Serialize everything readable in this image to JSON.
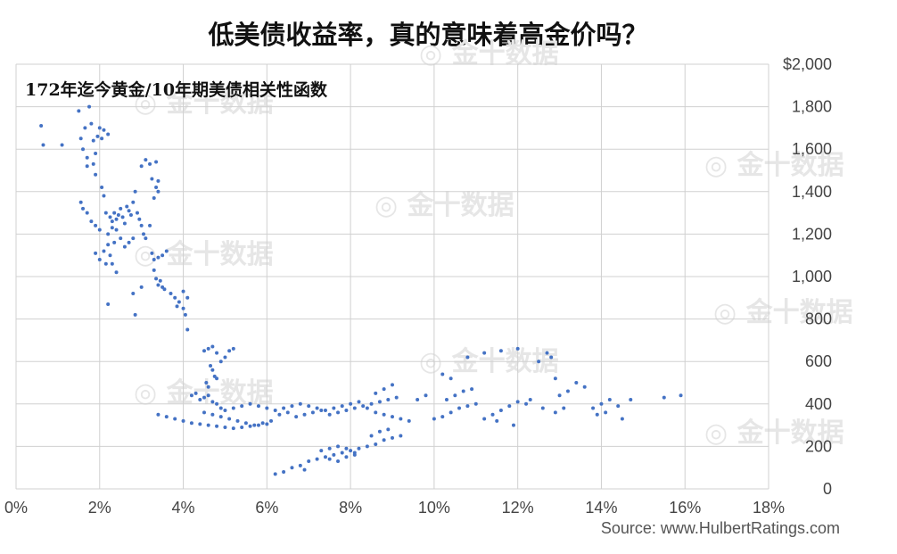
{
  "chart_data": {
    "type": "scatter",
    "title": "低美债收益率，真的意味着高金价吗？",
    "subtitle": "172年迄今黄金/10年期美债相关性函数",
    "source": "Source: www.HulbertRatings.com",
    "xlim": [
      0,
      18
    ],
    "ylim": [
      0,
      2000
    ],
    "x_ticks": [
      "0%",
      "2%",
      "4%",
      "6%",
      "8%",
      "10%",
      "12%",
      "14%",
      "16%",
      "18%"
    ],
    "y_ticks": [
      "$2,000",
      "1,800",
      "1,600",
      "1,400",
      "1,200",
      "1,000",
      "800",
      "600",
      "400",
      "200",
      "0"
    ],
    "grid": true,
    "point_color": "#4472c4",
    "series": [
      {
        "values": [
          [
            0.6,
            1710
          ],
          [
            0.65,
            1620
          ],
          [
            1.1,
            1620
          ],
          [
            1.5,
            1780
          ],
          [
            1.55,
            1650
          ],
          [
            1.6,
            1600
          ],
          [
            1.65,
            1700
          ],
          [
            1.7,
            1560
          ],
          [
            1.75,
            1800
          ],
          [
            1.8,
            1720
          ],
          [
            1.85,
            1640
          ],
          [
            1.9,
            1580
          ],
          [
            1.95,
            1660
          ],
          [
            2.0,
            1700
          ],
          [
            1.7,
            1520
          ],
          [
            1.85,
            1530
          ],
          [
            2.05,
            1650
          ],
          [
            2.1,
            1690
          ],
          [
            2.2,
            1670
          ],
          [
            1.9,
            1480
          ],
          [
            1.55,
            1350
          ],
          [
            1.6,
            1320
          ],
          [
            1.7,
            1300
          ],
          [
            1.8,
            1260
          ],
          [
            1.9,
            1240
          ],
          [
            2.0,
            1220
          ],
          [
            2.05,
            1420
          ],
          [
            2.1,
            1380
          ],
          [
            2.15,
            1300
          ],
          [
            2.2,
            1200
          ],
          [
            2.25,
            1280
          ],
          [
            2.3,
            1260
          ],
          [
            2.35,
            1300
          ],
          [
            2.4,
            1270
          ],
          [
            2.45,
            1290
          ],
          [
            2.5,
            1320
          ],
          [
            2.55,
            1280
          ],
          [
            2.6,
            1250
          ],
          [
            2.65,
            1330
          ],
          [
            2.7,
            1310
          ],
          [
            2.75,
            1290
          ],
          [
            2.8,
            1350
          ],
          [
            2.85,
            1400
          ],
          [
            2.9,
            1300
          ],
          [
            2.95,
            1270
          ],
          [
            3.0,
            1240
          ],
          [
            3.05,
            1200
          ],
          [
            3.1,
            1180
          ],
          [
            2.3,
            1230
          ],
          [
            2.4,
            1220
          ],
          [
            2.5,
            1180
          ],
          [
            2.35,
            1160
          ],
          [
            2.2,
            1150
          ],
          [
            2.1,
            1120
          ],
          [
            2.25,
            1100
          ],
          [
            2.3,
            1060
          ],
          [
            1.9,
            1110
          ],
          [
            2.0,
            1080
          ],
          [
            2.15,
            1060
          ],
          [
            2.4,
            1020
          ],
          [
            2.6,
            1140
          ],
          [
            2.7,
            1160
          ],
          [
            2.8,
            1180
          ],
          [
            2.2,
            870
          ],
          [
            2.8,
            920
          ],
          [
            2.85,
            820
          ],
          [
            3.0,
            950
          ],
          [
            3.25,
            1110
          ],
          [
            3.3,
            1080
          ],
          [
            3.4,
            1090
          ],
          [
            3.5,
            1100
          ],
          [
            3.6,
            1120
          ],
          [
            3.2,
            1240
          ],
          [
            3.3,
            1370
          ],
          [
            3.4,
            1400
          ],
          [
            3.2,
            1530
          ],
          [
            3.35,
            1540
          ],
          [
            3.1,
            1550
          ],
          [
            3.0,
            1520
          ],
          [
            3.25,
            1460
          ],
          [
            3.35,
            1420
          ],
          [
            3.4,
            1450
          ],
          [
            3.3,
            1030
          ],
          [
            3.35,
            990
          ],
          [
            3.4,
            960
          ],
          [
            3.45,
            980
          ],
          [
            3.5,
            950
          ],
          [
            3.55,
            940
          ],
          [
            3.7,
            920
          ],
          [
            3.8,
            900
          ],
          [
            3.85,
            860
          ],
          [
            3.9,
            880
          ],
          [
            4.0,
            850
          ],
          [
            4.05,
            820
          ],
          [
            4.1,
            750
          ],
          [
            4.0,
            930
          ],
          [
            4.1,
            900
          ],
          [
            4.2,
            440
          ],
          [
            4.3,
            450
          ],
          [
            4.4,
            420
          ],
          [
            4.5,
            430
          ],
          [
            4.6,
            440
          ],
          [
            4.7,
            410
          ],
          [
            4.8,
            400
          ],
          [
            4.9,
            380
          ],
          [
            5.0,
            370
          ],
          [
            4.5,
            650
          ],
          [
            4.6,
            660
          ],
          [
            4.7,
            670
          ],
          [
            4.8,
            640
          ],
          [
            4.9,
            600
          ],
          [
            5.0,
            620
          ],
          [
            5.1,
            650
          ],
          [
            5.2,
            660
          ],
          [
            4.65,
            580
          ],
          [
            4.7,
            560
          ],
          [
            4.75,
            530
          ],
          [
            4.8,
            520
          ],
          [
            4.55,
            500
          ],
          [
            4.6,
            480
          ],
          [
            3.4,
            350
          ],
          [
            3.6,
            340
          ],
          [
            3.8,
            330
          ],
          [
            4.0,
            320
          ],
          [
            4.2,
            310
          ],
          [
            4.4,
            305
          ],
          [
            4.6,
            300
          ],
          [
            4.8,
            295
          ],
          [
            5.0,
            290
          ],
          [
            5.2,
            285
          ],
          [
            5.4,
            290
          ],
          [
            5.6,
            295
          ],
          [
            5.8,
            300
          ],
          [
            6.0,
            305
          ],
          [
            4.5,
            360
          ],
          [
            4.7,
            350
          ],
          [
            4.9,
            340
          ],
          [
            5.1,
            330
          ],
          [
            5.3,
            320
          ],
          [
            5.5,
            310
          ],
          [
            5.7,
            300
          ],
          [
            5.9,
            310
          ],
          [
            6.1,
            320
          ],
          [
            5.2,
            380
          ],
          [
            5.4,
            390
          ],
          [
            5.6,
            400
          ],
          [
            5.8,
            390
          ],
          [
            6.0,
            380
          ],
          [
            6.2,
            370
          ],
          [
            6.4,
            380
          ],
          [
            6.6,
            390
          ],
          [
            6.8,
            400
          ],
          [
            7.0,
            390
          ],
          [
            7.2,
            380
          ],
          [
            7.4,
            370
          ],
          [
            7.6,
            380
          ],
          [
            7.8,
            390
          ],
          [
            8.0,
            400
          ],
          [
            8.2,
            410
          ],
          [
            6.3,
            350
          ],
          [
            6.5,
            360
          ],
          [
            6.7,
            340
          ],
          [
            6.9,
            350
          ],
          [
            7.1,
            360
          ],
          [
            7.3,
            370
          ],
          [
            7.5,
            350
          ],
          [
            7.7,
            360
          ],
          [
            7.9,
            370
          ],
          [
            8.1,
            380
          ],
          [
            8.3,
            390
          ],
          [
            8.5,
            400
          ],
          [
            8.7,
            410
          ],
          [
            8.9,
            420
          ],
          [
            9.1,
            430
          ],
          [
            8.6,
            450
          ],
          [
            8.8,
            470
          ],
          [
            9.0,
            490
          ],
          [
            8.4,
            380
          ],
          [
            8.6,
            360
          ],
          [
            8.8,
            350
          ],
          [
            9.0,
            340
          ],
          [
            9.2,
            330
          ],
          [
            9.4,
            320
          ],
          [
            9.6,
            420
          ],
          [
            9.8,
            440
          ],
          [
            6.2,
            70
          ],
          [
            6.4,
            80
          ],
          [
            6.6,
            100
          ],
          [
            6.8,
            110
          ],
          [
            7.0,
            130
          ],
          [
            7.2,
            140
          ],
          [
            7.4,
            150
          ],
          [
            7.6,
            160
          ],
          [
            7.8,
            170
          ],
          [
            8.0,
            180
          ],
          [
            8.2,
            190
          ],
          [
            8.4,
            200
          ],
          [
            8.6,
            210
          ],
          [
            8.8,
            230
          ],
          [
            9.0,
            240
          ],
          [
            9.2,
            250
          ],
          [
            7.3,
            180
          ],
          [
            7.5,
            190
          ],
          [
            7.7,
            200
          ],
          [
            7.9,
            190
          ],
          [
            8.1,
            170
          ],
          [
            7.5,
            140
          ],
          [
            7.7,
            130
          ],
          [
            7.9,
            150
          ],
          [
            8.1,
            160
          ],
          [
            6.9,
            90
          ],
          [
            8.5,
            250
          ],
          [
            8.7,
            270
          ],
          [
            8.9,
            280
          ],
          [
            10.0,
            330
          ],
          [
            10.2,
            340
          ],
          [
            10.4,
            360
          ],
          [
            10.6,
            380
          ],
          [
            10.8,
            390
          ],
          [
            11.0,
            400
          ],
          [
            10.3,
            420
          ],
          [
            10.5,
            440
          ],
          [
            10.7,
            460
          ],
          [
            10.9,
            470
          ],
          [
            10.2,
            540
          ],
          [
            10.4,
            520
          ],
          [
            10.8,
            620
          ],
          [
            11.2,
            640
          ],
          [
            11.6,
            650
          ],
          [
            12.0,
            660
          ],
          [
            11.2,
            330
          ],
          [
            11.4,
            350
          ],
          [
            11.6,
            370
          ],
          [
            11.8,
            390
          ],
          [
            12.0,
            410
          ],
          [
            12.2,
            400
          ],
          [
            11.5,
            320
          ],
          [
            11.9,
            300
          ],
          [
            12.3,
            420
          ],
          [
            12.6,
            380
          ],
          [
            12.8,
            620
          ],
          [
            13.0,
            440
          ],
          [
            13.2,
            460
          ],
          [
            12.5,
            600
          ],
          [
            12.7,
            640
          ],
          [
            12.9,
            520
          ],
          [
            13.4,
            500
          ],
          [
            13.6,
            480
          ],
          [
            13.8,
            380
          ],
          [
            14.0,
            400
          ],
          [
            14.2,
            420
          ],
          [
            14.4,
            390
          ],
          [
            13.9,
            350
          ],
          [
            14.1,
            360
          ],
          [
            14.5,
            330
          ],
          [
            14.7,
            420
          ],
          [
            15.5,
            430
          ],
          [
            15.9,
            440
          ],
          [
            12.9,
            360
          ],
          [
            13.1,
            380
          ]
        ]
      }
    ]
  },
  "watermarks": [
    "金十数据",
    "金十数据",
    "金十数据",
    "金十数据",
    "金十数据",
    "金十数据",
    "金十数据",
    "金十数据",
    "金十数据"
  ]
}
